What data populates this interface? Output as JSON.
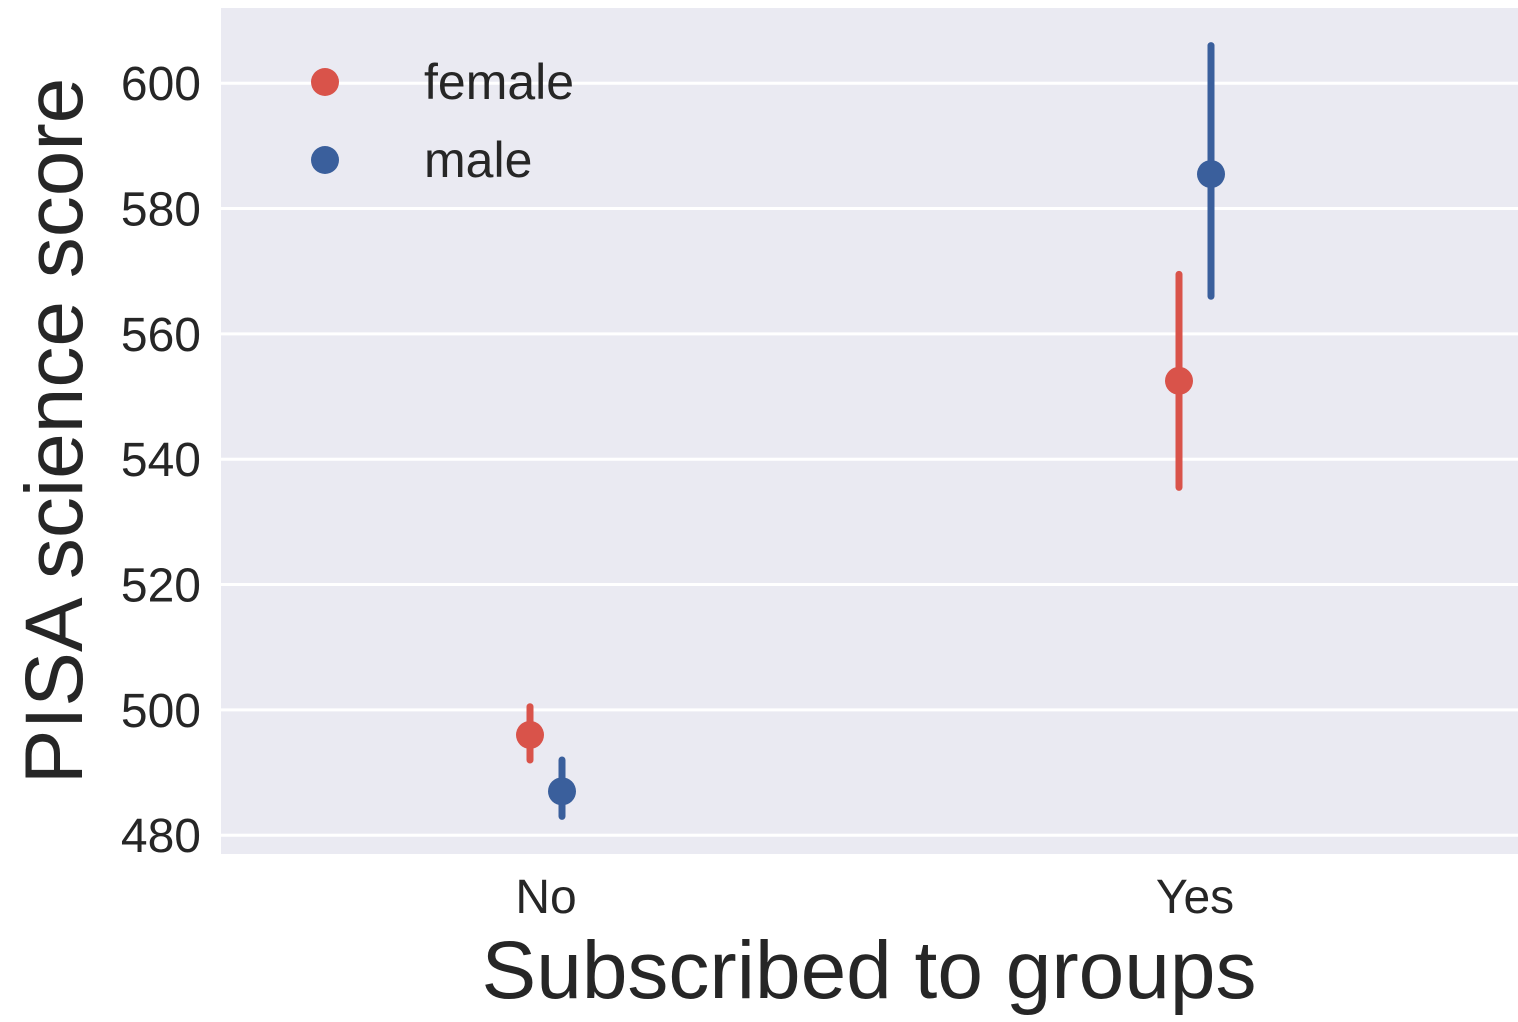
{
  "chart_data": {
    "type": "point",
    "xlabel": "Subscribed to groups",
    "ylabel": "PISA science score",
    "categories": [
      "No",
      "Yes"
    ],
    "ylim": [
      477,
      612
    ],
    "yticks": [
      480,
      500,
      520,
      540,
      560,
      580,
      600
    ],
    "grid": true,
    "legend_position": "top-left",
    "series": [
      {
        "name": "female",
        "color": "#d9534a",
        "values": [
          496,
          552.5
        ],
        "ci_low": [
          492,
          535.5
        ],
        "ci_high": [
          500.5,
          569.5
        ]
      },
      {
        "name": "male",
        "color": "#3a5f9c",
        "values": [
          487,
          585.5
        ],
        "ci_low": [
          483,
          566
        ],
        "ci_high": [
          492,
          606
        ]
      }
    ]
  }
}
